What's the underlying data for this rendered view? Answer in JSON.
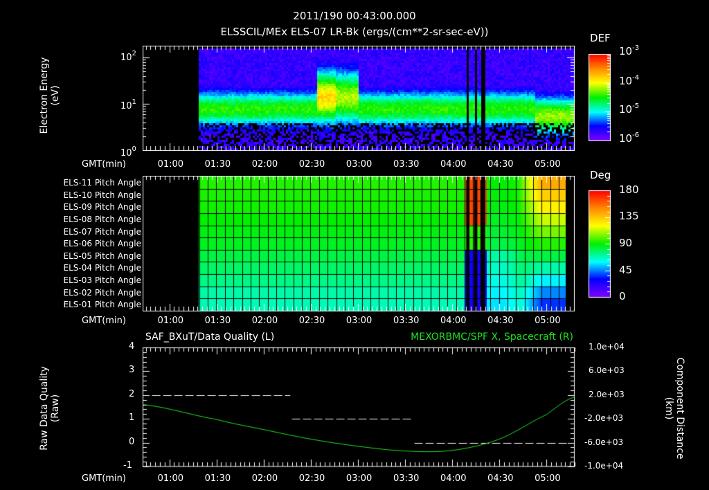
{
  "header": {
    "timestamp": "2011/190 00:43:00.000",
    "subtitle": "ELSSCIL/MEx ELS-07 LR-Bk  (ergs/(cm**2-sr-sec-eV))"
  },
  "x_axis": {
    "label": "GMT(min)",
    "ticks": [
      "01:00",
      "01:30",
      "02:00",
      "02:30",
      "03:00",
      "03:30",
      "04:00",
      "04:30",
      "05:00"
    ]
  },
  "panel1": {
    "ylabel_line1": "Electron Energy",
    "ylabel_line2": "(eV)",
    "yticks": [
      {
        "base": "10",
        "exp": "2"
      },
      {
        "base": "10",
        "exp": "1"
      },
      {
        "base": "10",
        "exp": "0"
      }
    ],
    "colorbar": {
      "title": "DEF",
      "labels": [
        {
          "base": "10",
          "exp": "-3"
        },
        {
          "base": "10",
          "exp": "-4"
        },
        {
          "base": "10",
          "exp": "-5"
        },
        {
          "base": "10",
          "exp": "-6"
        }
      ]
    }
  },
  "panel2": {
    "rows": [
      "ELS-11 Pitch Angle",
      "ELS-10 Pitch Angle",
      "ELS-09 Pitch Angle",
      "ELS-08 Pitch Angle",
      "ELS-07 Pitch Angle",
      "ELS-06 Pitch Angle",
      "ELS-05 Pitch Angle",
      "ELS-04 Pitch Angle",
      "ELS-03 Pitch Angle",
      "ELS-02 Pitch Angle",
      "ELS-01 Pitch Angle"
    ],
    "colorbar": {
      "title": "Deg",
      "labels": [
        "180",
        "135",
        "90",
        "45",
        "0"
      ]
    }
  },
  "panel3": {
    "title_left": "SAF_BXuT/Data Quality (L)",
    "title_right": "MEXORBMC/SPF X, Spacecraft (R)",
    "ylabel_left_line1": "Raw Data Quality",
    "ylabel_left_line2": "(Raw)",
    "ylabel_right_line1": "Component Distance",
    "ylabel_right_line2": "(km)",
    "yticks_left": [
      "4",
      "3",
      "2",
      "1",
      "0",
      "-1"
    ],
    "yticks_right": [
      "1.0e+04",
      "6.0e+03",
      "2.0e+03",
      "-2.0e+03",
      "-6.0e+03",
      "-1.0e+04"
    ]
  },
  "colors": {
    "background": "#000000",
    "axes": "#ffffff",
    "spacecraft_line": "#20e020",
    "quality_line": "#ffffff"
  },
  "chart_data": [
    {
      "type": "heatmap",
      "title": "ELSSCIL/MEx ELS-07 LR-Bk (ergs/(cm**2-sr-sec-eV))",
      "xlabel": "GMT(min)",
      "ylabel": "Electron Energy (eV)",
      "xrange": [
        "00:43",
        "05:18"
      ],
      "data_start": "01:19",
      "yscale": "log",
      "ylim": [
        1,
        180
      ],
      "colorbar": {
        "label": "DEF",
        "scale": "log",
        "range": [
          1e-06,
          0.001
        ]
      },
      "features": [
        {
          "desc": "main band ~5-20 eV, level ~1e-5 to 5e-5",
          "x": [
            "01:19",
            "05:18"
          ]
        },
        {
          "desc": "enhanced flux ~20-60 eV, up to ~2e-4",
          "x": [
            "02:33",
            "02:58"
          ]
        },
        {
          "desc": "data gaps (black stripes)",
          "x": [
            "04:10",
            "04:14",
            "04:17",
            "04:20"
          ]
        },
        {
          "desc": "enhanced band ~4-10 eV, ~5e-5",
          "x": [
            "04:52",
            "05:18"
          ]
        }
      ]
    },
    {
      "type": "heatmap",
      "title": "Pitch Angle",
      "xlabel": "GMT(min)",
      "categories": [
        "ELS-01",
        "ELS-02",
        "ELS-03",
        "ELS-04",
        "ELS-05",
        "ELS-06",
        "ELS-07",
        "ELS-08",
        "ELS-09",
        "ELS-10",
        "ELS-11"
      ],
      "colorbar": {
        "label": "Deg",
        "range": [
          0,
          180
        ],
        "ticks": [
          0,
          45,
          90,
          135,
          180
        ]
      },
      "baseline_deg": [
        68,
        70,
        74,
        78,
        82,
        86,
        88,
        90,
        92,
        93,
        94
      ],
      "features": [
        {
          "desc": "gaps and high pitch (~170) on upper anodes, low (~20) on lower",
          "x": [
            "04:10",
            "04:20"
          ]
        },
        {
          "desc": "upper anodes ~130-140 deg, lower ~30 deg",
          "x": [
            "04:55",
            "05:15"
          ]
        }
      ]
    },
    {
      "type": "line",
      "title": "SAF_BXuT/Data Quality (L)",
      "xlabel": "GMT(min)",
      "ylabel": "Raw Data Quality (Raw)",
      "ylim": [
        -1,
        4
      ],
      "series": [
        {
          "name": "Data Quality",
          "style": "dashed",
          "points": [
            [
              "00:49",
              2
            ],
            [
              "02:17",
              2
            ],
            [
              "02:18",
              1
            ],
            [
              "03:35",
              1
            ],
            [
              "03:36",
              0
            ],
            [
              "05:15",
              0
            ]
          ]
        }
      ]
    },
    {
      "type": "line",
      "title": "MEXORBMC/SPF X, Spacecraft (R)",
      "ylabel": "Component Distance (km)",
      "ylim": [
        -10000,
        10000
      ],
      "series": [
        {
          "name": "SPF X",
          "points": [
            [
              "00:43",
              400
            ],
            [
              "01:30",
              -2100
            ],
            [
              "02:00",
              -3800
            ],
            [
              "02:30",
              -5400
            ],
            [
              "03:00",
              -6600
            ],
            [
              "03:30",
              -7400
            ],
            [
              "04:00",
              -7300
            ],
            [
              "04:30",
              -5400
            ],
            [
              "05:00",
              -1300
            ],
            [
              "05:18",
              1700
            ]
          ]
        }
      ]
    }
  ]
}
